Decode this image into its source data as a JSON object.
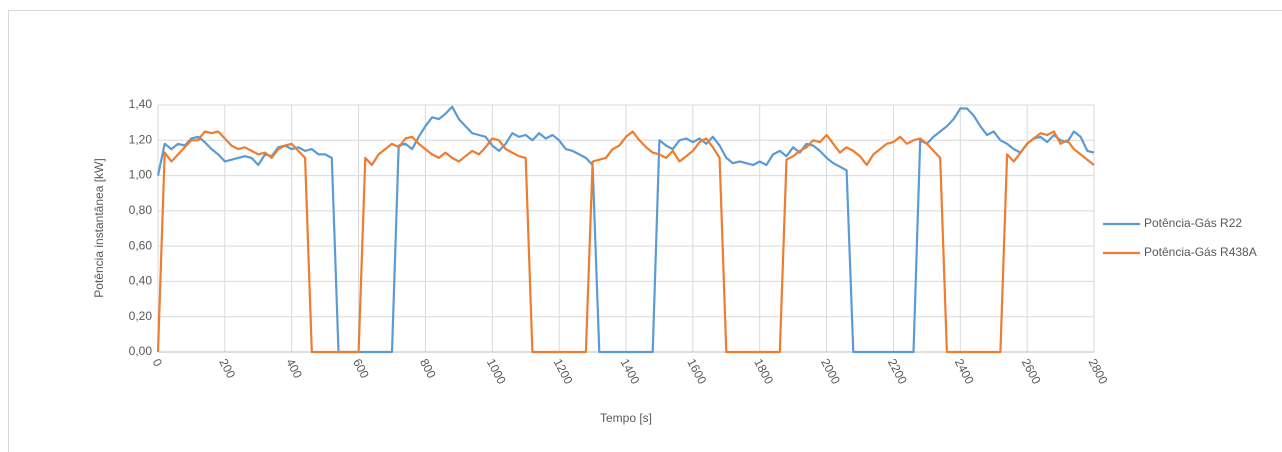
{
  "chart_data": {
    "type": "line",
    "x_label": "Tempo [s]",
    "y_label": "Potência instantânea [kW]",
    "x": [
      0,
      20,
      40,
      60,
      80,
      100,
      120,
      140,
      160,
      180,
      200,
      220,
      240,
      260,
      280,
      300,
      320,
      340,
      360,
      380,
      400,
      420,
      440,
      460,
      480,
      500,
      520,
      540,
      560,
      580,
      600,
      620,
      640,
      660,
      680,
      700,
      720,
      740,
      760,
      780,
      800,
      820,
      840,
      860,
      880,
      900,
      920,
      940,
      960,
      980,
      1000,
      1020,
      1040,
      1060,
      1080,
      1100,
      1120,
      1140,
      1160,
      1180,
      1200,
      1220,
      1240,
      1260,
      1280,
      1300,
      1320,
      1340,
      1360,
      1380,
      1400,
      1420,
      1440,
      1460,
      1480,
      1500,
      1520,
      1540,
      1560,
      1580,
      1600,
      1620,
      1640,
      1660,
      1680,
      1700,
      1720,
      1740,
      1760,
      1780,
      1800,
      1820,
      1840,
      1860,
      1880,
      1900,
      1920,
      1940,
      1960,
      1980,
      2000,
      2020,
      2040,
      2060,
      2080,
      2100,
      2120,
      2140,
      2160,
      2180,
      2200,
      2220,
      2240,
      2260,
      2280,
      2300,
      2320,
      2340,
      2360,
      2380,
      2400,
      2420,
      2440,
      2460,
      2480,
      2500,
      2520,
      2540,
      2560,
      2580,
      2600,
      2620,
      2640,
      2660,
      2680,
      2700,
      2720,
      2740,
      2760,
      2780,
      2800
    ],
    "series": [
      {
        "name": "Potência-Gás R22",
        "color": "#5b9bd5",
        "values": [
          1.0,
          1.18,
          1.15,
          1.18,
          1.17,
          1.21,
          1.22,
          1.19,
          1.15,
          1.12,
          1.08,
          1.09,
          1.1,
          1.11,
          1.1,
          1.06,
          1.12,
          1.11,
          1.16,
          1.17,
          1.15,
          1.16,
          1.14,
          1.15,
          1.12,
          1.12,
          1.1,
          0,
          0,
          0,
          0,
          0,
          0,
          0,
          0,
          0,
          1.17,
          1.18,
          1.15,
          1.22,
          1.28,
          1.33,
          1.32,
          1.35,
          1.39,
          1.32,
          1.28,
          1.24,
          1.23,
          1.22,
          1.17,
          1.14,
          1.18,
          1.24,
          1.22,
          1.23,
          1.2,
          1.24,
          1.21,
          1.23,
          1.2,
          1.15,
          1.14,
          1.12,
          1.1,
          1.06,
          0,
          0,
          0,
          0,
          0,
          0,
          0,
          0,
          0,
          1.2,
          1.17,
          1.15,
          1.2,
          1.21,
          1.19,
          1.21,
          1.18,
          1.22,
          1.17,
          1.1,
          1.07,
          1.08,
          1.07,
          1.06,
          1.08,
          1.06,
          1.12,
          1.14,
          1.11,
          1.16,
          1.13,
          1.18,
          1.17,
          1.14,
          1.1,
          1.07,
          1.05,
          1.03,
          0,
          0,
          0,
          0,
          0,
          0,
          0,
          0,
          0,
          0,
          1.2,
          1.18,
          1.22,
          1.25,
          1.28,
          1.32,
          1.38,
          1.38,
          1.34,
          1.28,
          1.23,
          1.25,
          1.2,
          1.18,
          1.15,
          1.13,
          1.18,
          1.21,
          1.22,
          1.19,
          1.23,
          1.2,
          1.19,
          1.25,
          1.22,
          1.14,
          1.13
        ]
      },
      {
        "name": "Potência-Gás R438A",
        "color": "#ed7d31",
        "values": [
          0,
          1.13,
          1.08,
          1.12,
          1.16,
          1.2,
          1.2,
          1.25,
          1.24,
          1.25,
          1.21,
          1.17,
          1.15,
          1.16,
          1.14,
          1.12,
          1.13,
          1.1,
          1.15,
          1.17,
          1.18,
          1.14,
          1.1,
          0,
          0,
          0,
          0,
          0,
          0,
          0,
          0,
          1.1,
          1.06,
          1.12,
          1.15,
          1.18,
          1.16,
          1.21,
          1.22,
          1.18,
          1.15,
          1.12,
          1.1,
          1.13,
          1.1,
          1.08,
          1.11,
          1.14,
          1.12,
          1.16,
          1.21,
          1.2,
          1.15,
          1.13,
          1.11,
          1.1,
          0,
          0,
          0,
          0,
          0,
          0,
          0,
          0,
          0,
          1.08,
          1.09,
          1.1,
          1.15,
          1.17,
          1.22,
          1.25,
          1.2,
          1.16,
          1.13,
          1.12,
          1.1,
          1.14,
          1.08,
          1.11,
          1.14,
          1.19,
          1.21,
          1.16,
          1.1,
          0,
          0,
          0,
          0,
          0,
          0,
          0,
          0,
          0,
          1.09,
          1.11,
          1.14,
          1.16,
          1.2,
          1.19,
          1.23,
          1.18,
          1.13,
          1.16,
          1.14,
          1.11,
          1.06,
          1.12,
          1.15,
          1.18,
          1.19,
          1.22,
          1.18,
          1.2,
          1.21,
          1.18,
          1.14,
          1.1,
          0,
          0,
          0,
          0,
          0,
          0,
          0,
          0,
          0,
          1.12,
          1.08,
          1.13,
          1.18,
          1.21,
          1.24,
          1.23,
          1.25,
          1.18,
          1.2,
          1.15,
          1.12,
          1.09,
          1.06
        ]
      }
    ],
    "xlim": [
      0,
      2800
    ],
    "xticks": [
      0,
      200,
      400,
      600,
      800,
      1000,
      1200,
      1400,
      1600,
      1800,
      2000,
      2200,
      2400,
      2600,
      2800
    ],
    "ylim": [
      0,
      1.4
    ],
    "yticks": [
      {
        "value": 0,
        "label": "0,00"
      },
      {
        "value": 0.2,
        "label": "0,20"
      },
      {
        "value": 0.4,
        "label": "0,40"
      },
      {
        "value": 0.6,
        "label": "0,60"
      },
      {
        "value": 0.8,
        "label": "0,80"
      },
      {
        "value": 1.0,
        "label": "1,00"
      },
      {
        "value": 1.2,
        "label": "1,20"
      },
      {
        "value": 1.4,
        "label": "1,40"
      }
    ],
    "grid": true,
    "legend": "right"
  }
}
